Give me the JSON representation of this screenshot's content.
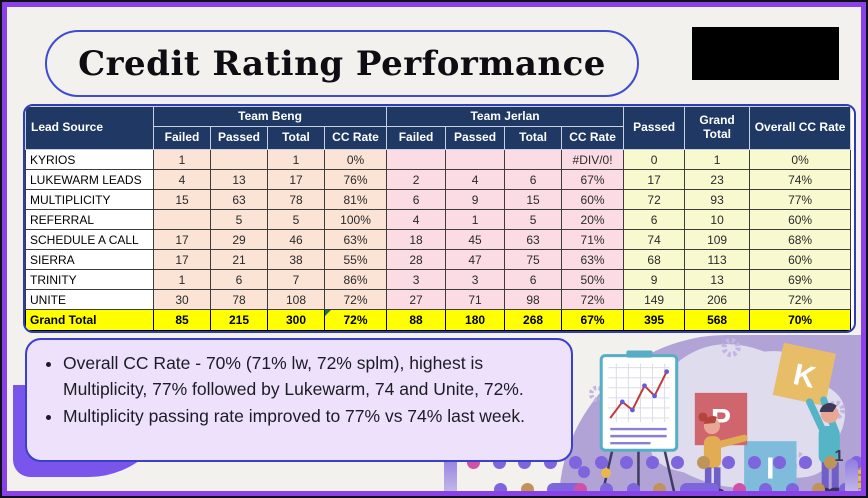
{
  "title": "Credit Rating Performance",
  "colors": {
    "header_bg": "#1F3864",
    "team_beng_bg": "#FBE3D5",
    "team_jerlan_bg": "#FBDCE5",
    "totals_bg": "#F9F9CF",
    "grand_total_bg": "#FFFF00",
    "frame_border": "#8A41EA",
    "table_border": "#2E3CB8",
    "notes_bg": "#EDE1FB",
    "notes_border": "#3C40C8"
  },
  "table": {
    "lead_source_header": "Lead Source",
    "group_headers": [
      "Team Beng",
      "Team Jerlan"
    ],
    "sub_headers": [
      "Failed",
      "Passed",
      "Total",
      "CC Rate"
    ],
    "extra_headers": [
      "Passed",
      "Grand Total",
      "Overall CC Rate"
    ],
    "rows": [
      {
        "source": "KYRIOS",
        "beng": [
          "1",
          "",
          "1",
          "0%"
        ],
        "jerlan": [
          "",
          "",
          "",
          "#DIV/0!"
        ],
        "totals": [
          "0",
          "1",
          "0%"
        ]
      },
      {
        "source": "LUKEWARM LEADS",
        "beng": [
          "4",
          "13",
          "17",
          "76%"
        ],
        "jerlan": [
          "2",
          "4",
          "6",
          "67%"
        ],
        "totals": [
          "17",
          "23",
          "74%"
        ]
      },
      {
        "source": "MULTIPLICITY",
        "beng": [
          "15",
          "63",
          "78",
          "81%"
        ],
        "jerlan": [
          "6",
          "9",
          "15",
          "60%"
        ],
        "totals": [
          "72",
          "93",
          "77%"
        ]
      },
      {
        "source": "REFERRAL",
        "beng": [
          "",
          "5",
          "5",
          "100%"
        ],
        "jerlan": [
          "4",
          "1",
          "5",
          "20%"
        ],
        "totals": [
          "6",
          "10",
          "60%"
        ]
      },
      {
        "source": "SCHEDULE A CALL",
        "beng": [
          "17",
          "29",
          "46",
          "63%"
        ],
        "jerlan": [
          "18",
          "45",
          "63",
          "71%"
        ],
        "totals": [
          "74",
          "109",
          "68%"
        ]
      },
      {
        "source": "SIERRA",
        "beng": [
          "17",
          "21",
          "38",
          "55%"
        ],
        "jerlan": [
          "28",
          "47",
          "75",
          "63%"
        ],
        "totals": [
          "68",
          "113",
          "60%"
        ]
      },
      {
        "source": "TRINITY",
        "beng": [
          "1",
          "6",
          "7",
          "86%"
        ],
        "jerlan": [
          "3",
          "3",
          "6",
          "50%"
        ],
        "totals": [
          "9",
          "13",
          "69%"
        ]
      },
      {
        "source": "UNITE",
        "beng": [
          "30",
          "78",
          "108",
          "72%"
        ],
        "jerlan": [
          "27",
          "71",
          "98",
          "72%"
        ],
        "totals": [
          "149",
          "206",
          "72%"
        ]
      }
    ],
    "grand_total": {
      "source": "Grand Total",
      "beng": [
        "85",
        "215",
        "300",
        "72%"
      ],
      "jerlan": [
        "88",
        "180",
        "268",
        "67%"
      ],
      "totals": [
        "395",
        "568",
        "70%"
      ]
    }
  },
  "notes": {
    "bullets": [
      "Overall CC Rate - 70% (71% lw, 72% splm), highest is Multiplicity, 77% followed by Lukewarm, 74 and Unite, 72%.",
      "Multiplicity passing rate improved to 77% vs 74% last week."
    ]
  },
  "illustration": {
    "blocks": [
      "K",
      "P",
      "I"
    ]
  },
  "footer": {
    "page_number": "1"
  }
}
